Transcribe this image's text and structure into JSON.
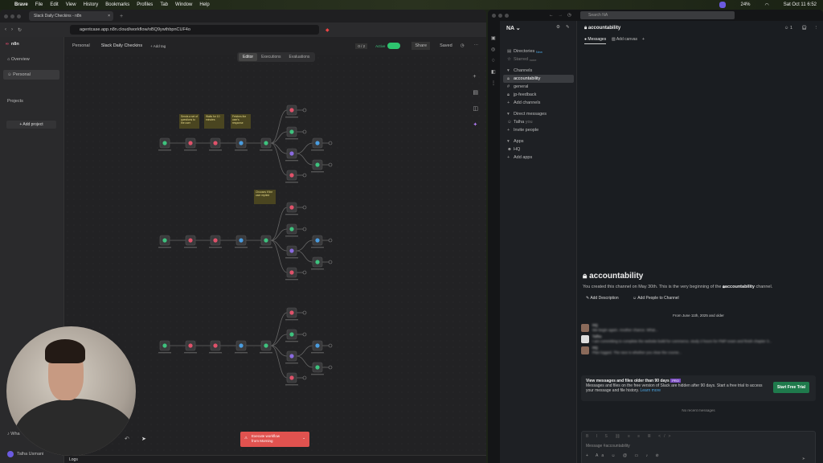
{
  "menubar": {
    "app": "Brave",
    "items": [
      "File",
      "Edit",
      "View",
      "History",
      "Bookmarks",
      "Profiles",
      "Tab",
      "Window",
      "Help"
    ],
    "battery": "24%",
    "clock": "Sat Oct 11  6:52"
  },
  "browser": {
    "tab_title": "Slack Daily Checkins - n8n",
    "url": "agentcase.app.n8n.cloud/workflow/oBQ9ywthbpnCUF4o"
  },
  "n8n": {
    "logo": "n8n",
    "sidebar": {
      "overview": "Overview",
      "personal": "Personal",
      "projects": "Projects",
      "add_project": "+ Add project",
      "user": "Talha Usmani",
      "whats_new": "Wha"
    },
    "header": {
      "breadcrumb": "Personal",
      "title": "Slack Daily Checkins",
      "add_tag": "+ Add tag",
      "counter": "0 / 2",
      "active_label": "Active",
      "share": "Share",
      "saved": "Saved"
    },
    "canvas_tabs": [
      "Editor",
      "Executions",
      "Evaluations"
    ],
    "sticky_notes": [
      "Sends a set of questions to the user",
      "Waits for 10 minutes",
      "Fetches the user's response",
      "Chooses if the user replied"
    ],
    "execute": {
      "label": "Execute workflow",
      "sub": "from Morning"
    },
    "logs": "Logs"
  },
  "slack": {
    "search": "Search NA",
    "workspace": "NA",
    "directories": "Directories",
    "directories_badge": "New",
    "starred": "Starred",
    "starred_hint": "none",
    "channels_header": "Channels",
    "channels": [
      "accountability",
      "general",
      "jp-feedback"
    ],
    "add_channels": "Add channels",
    "dm_header": "Direct messages",
    "dm_user": "Talha",
    "dm_you": "you",
    "invite": "Invite people",
    "apps_header": "Apps",
    "apps": [
      "HQ"
    ],
    "add_apps": "Add apps",
    "channel": "accountability",
    "member_count": "1",
    "tabs": [
      "Messages",
      "Add canvas"
    ],
    "intro_title": "accountability",
    "intro_text": "You created this channel on May 30th. This is the very beginning of the",
    "intro_text_end": "channel.",
    "add_description": "Add Description",
    "add_people": "Add People to Channel",
    "date_divider": "From June 11th, 2025 and older",
    "messages": [
      {
        "author": "HQ",
        "text": "We begin again. Another chance. What..."
      },
      {
        "author": "Talha",
        "text": "I am committing to complete the website build for commerce, study 2 hours for PMP exam and finish chapter 3..."
      },
      {
        "author": "HQ",
        "text": "Plan logged. The race is whether you clear the course..."
      }
    ],
    "upsell_title": "View messages and files older than 90 days",
    "upsell_badge": "PRO",
    "upsell_text": "Messages and files on the free version of Slack are hidden after 90 days. Start a free trial to access your message and file history.",
    "learn_more": "Learn more",
    "trial_button": "Start Free Trial",
    "no_recent": "No recent messages",
    "composer_placeholder": "Message #accountability"
  }
}
